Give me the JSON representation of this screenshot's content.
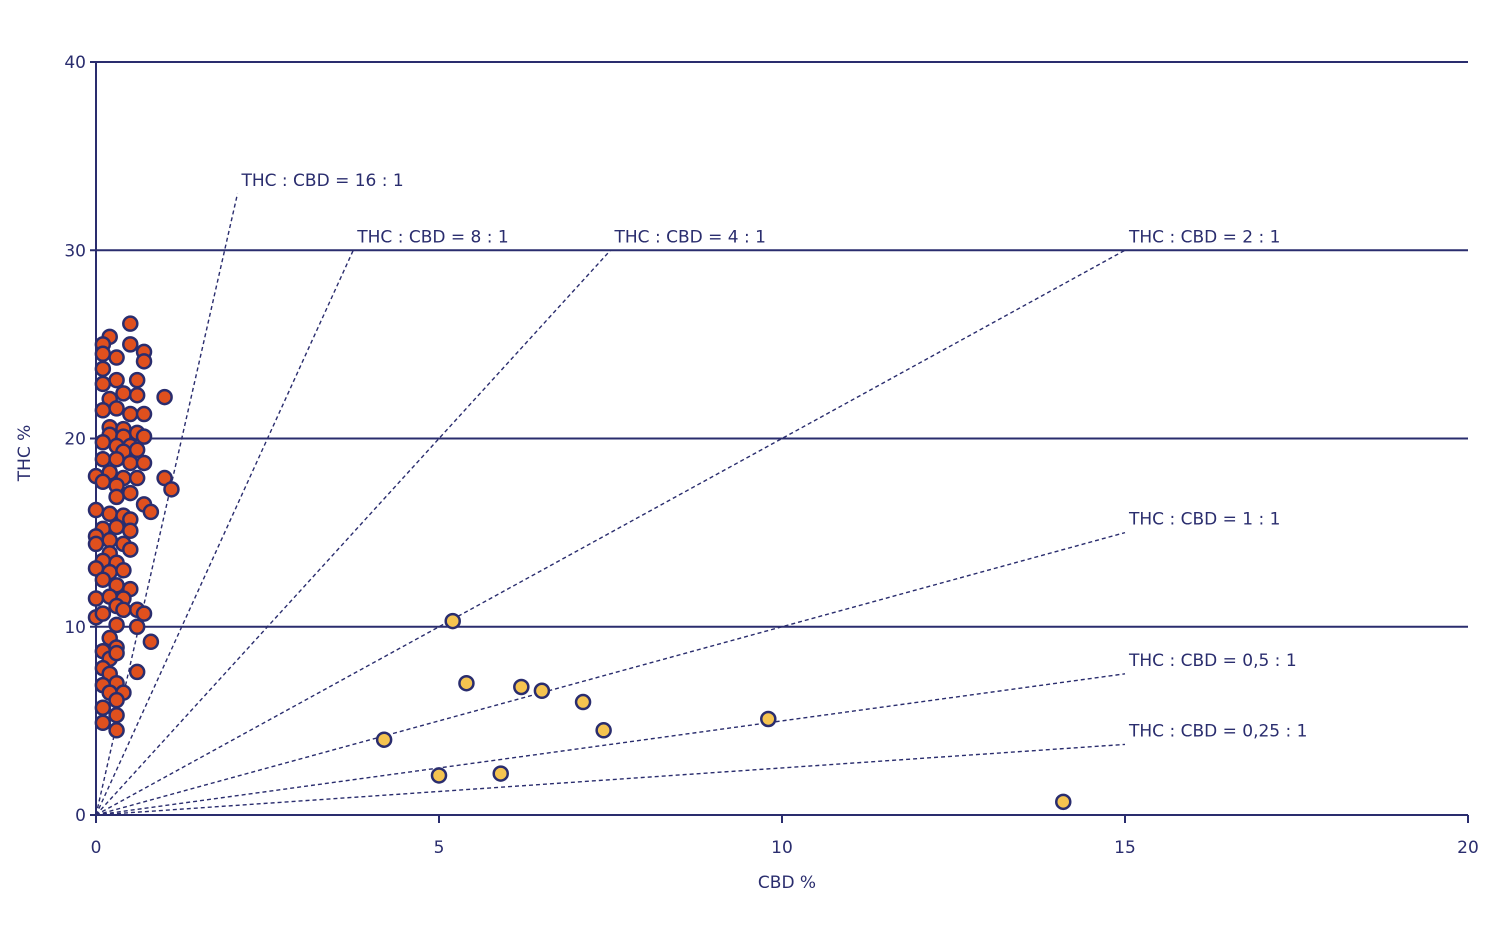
{
  "chart_data": {
    "type": "scatter",
    "title": "",
    "xlabel": "CBD %",
    "ylabel": "THC %",
    "xlim": [
      0,
      20
    ],
    "ylim": [
      0,
      40
    ],
    "x_ticks": [
      "0",
      "5",
      "10",
      "15",
      "20"
    ],
    "y_ticks": [
      "0",
      "10",
      "20",
      "30",
      "40"
    ],
    "grid": "horizontal",
    "ratio_lines": [
      {
        "label": "THC : CBD = 16 : 1",
        "ratio": 16
      },
      {
        "label": "THC : CBD = 8 : 1",
        "ratio": 8
      },
      {
        "label": "THC : CBD = 4 : 1",
        "ratio": 4
      },
      {
        "label": "THC : CBD = 2 : 1",
        "ratio": 2
      },
      {
        "label": "THC : CBD = 1 : 1",
        "ratio": 1
      },
      {
        "label": "THC : CBD = 0,5 : 1",
        "ratio": 0.5
      },
      {
        "label": "THC : CBD = 0,25 : 1",
        "ratio": 0.25
      }
    ],
    "series": [
      {
        "color": "#e0501e",
        "points": [
          [
            0.5,
            26.1
          ],
          [
            0.2,
            25.4
          ],
          [
            0.1,
            25.0
          ],
          [
            0.5,
            25.0
          ],
          [
            0.1,
            24.5
          ],
          [
            0.7,
            24.6
          ],
          [
            0.3,
            24.3
          ],
          [
            0.7,
            24.1
          ],
          [
            0.1,
            23.7
          ],
          [
            0.3,
            23.1
          ],
          [
            0.1,
            22.9
          ],
          [
            0.6,
            23.1
          ],
          [
            0.4,
            22.4
          ],
          [
            0.2,
            22.1
          ],
          [
            0.6,
            22.3
          ],
          [
            1.0,
            22.2
          ],
          [
            0.1,
            21.5
          ],
          [
            0.3,
            21.6
          ],
          [
            0.5,
            21.3
          ],
          [
            0.7,
            21.3
          ],
          [
            0.2,
            20.6
          ],
          [
            0.4,
            20.5
          ],
          [
            0.6,
            20.3
          ],
          [
            0.2,
            20.2
          ],
          [
            0.4,
            20.1
          ],
          [
            0.7,
            20.1
          ],
          [
            0.1,
            19.8
          ],
          [
            0.3,
            19.6
          ],
          [
            0.5,
            19.6
          ],
          [
            0.4,
            19.3
          ],
          [
            0.6,
            19.4
          ],
          [
            0.1,
            18.9
          ],
          [
            0.3,
            18.9
          ],
          [
            0.5,
            18.7
          ],
          [
            0.7,
            18.7
          ],
          [
            0.0,
            18.0
          ],
          [
            0.2,
            18.2
          ],
          [
            0.4,
            17.9
          ],
          [
            0.6,
            17.9
          ],
          [
            1.0,
            17.9
          ],
          [
            0.1,
            17.7
          ],
          [
            0.3,
            17.5
          ],
          [
            0.5,
            17.1
          ],
          [
            1.1,
            17.3
          ],
          [
            0.3,
            16.9
          ],
          [
            0.7,
            16.5
          ],
          [
            0.8,
            16.1
          ],
          [
            0.0,
            16.2
          ],
          [
            0.2,
            16.0
          ],
          [
            0.4,
            15.9
          ],
          [
            0.5,
            15.7
          ],
          [
            0.1,
            15.2
          ],
          [
            0.3,
            15.3
          ],
          [
            0.5,
            15.1
          ],
          [
            0.0,
            14.8
          ],
          [
            0.2,
            14.6
          ],
          [
            0.4,
            14.4
          ],
          [
            0.5,
            14.1
          ],
          [
            0.0,
            14.4
          ],
          [
            0.2,
            13.9
          ],
          [
            0.1,
            13.5
          ],
          [
            0.3,
            13.4
          ],
          [
            0.0,
            13.1
          ],
          [
            0.2,
            12.9
          ],
          [
            0.4,
            13.0
          ],
          [
            0.1,
            12.5
          ],
          [
            0.3,
            12.2
          ],
          [
            0.5,
            12.0
          ],
          [
            0.0,
            11.5
          ],
          [
            0.2,
            11.6
          ],
          [
            0.4,
            11.5
          ],
          [
            0.3,
            11.1
          ],
          [
            0.6,
            10.9
          ],
          [
            0.0,
            10.5
          ],
          [
            0.1,
            10.7
          ],
          [
            0.4,
            10.9
          ],
          [
            0.7,
            10.7
          ],
          [
            0.3,
            10.1
          ],
          [
            0.6,
            10.0
          ],
          [
            0.2,
            9.4
          ],
          [
            0.8,
            9.2
          ],
          [
            0.1,
            8.7
          ],
          [
            0.3,
            8.9
          ],
          [
            0.2,
            8.3
          ],
          [
            0.3,
            8.6
          ],
          [
            0.1,
            7.8
          ],
          [
            0.2,
            7.5
          ],
          [
            0.6,
            7.6
          ],
          [
            0.3,
            7.0
          ],
          [
            0.1,
            6.9
          ],
          [
            0.2,
            6.5
          ],
          [
            0.4,
            6.5
          ],
          [
            0.1,
            5.7
          ],
          [
            0.3,
            6.1
          ],
          [
            0.3,
            5.3
          ],
          [
            0.1,
            4.9
          ],
          [
            0.3,
            4.5
          ]
        ]
      },
      {
        "color": "#f5c450",
        "points": [
          [
            5.2,
            10.3
          ],
          [
            5.4,
            7.0
          ],
          [
            6.2,
            6.8
          ],
          [
            6.5,
            6.6
          ],
          [
            7.1,
            6.0
          ],
          [
            4.2,
            4.0
          ],
          [
            7.4,
            4.5
          ],
          [
            9.8,
            5.1
          ],
          [
            5.0,
            2.1
          ],
          [
            5.9,
            2.2
          ],
          [
            14.1,
            0.7
          ]
        ]
      }
    ]
  }
}
